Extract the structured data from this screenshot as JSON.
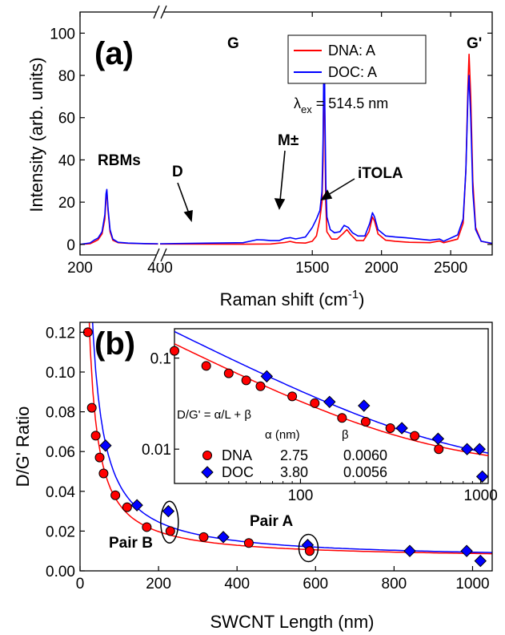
{
  "chart_data": [
    {
      "type": "line",
      "panel_label": "(a)",
      "xlabel": "Raman shift (cm",
      "xlabel_sup": "-1",
      "xlabel_close": ")",
      "ylabel": "Intensity (arb. units)",
      "xlim_low": [
        200,
        400
      ],
      "xlim_high": [
        400,
        2800
      ],
      "ylim": [
        -5,
        110
      ],
      "xticks_low": [
        200,
        400
      ],
      "xticks_high": [
        1500,
        2000,
        2500
      ],
      "yticks": [
        0,
        20,
        40,
        60,
        80,
        100
      ],
      "excitation": {
        "lambda": "λ",
        "sub": "ex",
        "value": " = 514.5 nm"
      },
      "legend": {
        "position": "top-right",
        "entries": [
          "DNA: A",
          "DOC: A"
        ]
      },
      "annotations": {
        "rbm": "RBMs",
        "d": "D",
        "g": "G",
        "m": "M±",
        "itola": "iTOLA",
        "g2": "G'"
      },
      "series": [
        {
          "name": "DNA: A",
          "color": "#ff0000",
          "low": [
            [
              200,
              0
            ],
            [
              225,
              0.3
            ],
            [
              235,
              1.2
            ],
            [
              245,
              2.2
            ],
            [
              255,
              5
            ],
            [
              262,
              12
            ],
            [
              265,
              22
            ],
            [
              267,
              25
            ],
            [
              270,
              16
            ],
            [
              275,
              6
            ],
            [
              282,
              2
            ],
            [
              295,
              0.8
            ],
            [
              320,
              0.5
            ],
            [
              360,
              0.3
            ],
            [
              395,
              0.2
            ]
          ],
          "high": [
            [
              400,
              0.2
            ],
            [
              1000,
              0.1
            ],
            [
              1200,
              0.2
            ],
            [
              1300,
              0.9
            ],
            [
              1340,
              1.4
            ],
            [
              1380,
              0.8
            ],
            [
              1450,
              0.6
            ],
            [
              1500,
              1.5
            ],
            [
              1530,
              4
            ],
            [
              1555,
              12
            ],
            [
              1570,
              20
            ],
            [
              1578,
              40
            ],
            [
              1582,
              70
            ],
            [
              1586,
              92
            ],
            [
              1590,
              60
            ],
            [
              1597,
              20
            ],
            [
              1605,
              6
            ],
            [
              1640,
              2.5
            ],
            [
              1680,
              2.5
            ],
            [
              1720,
              5
            ],
            [
              1750,
              7
            ],
            [
              1780,
              4.5
            ],
            [
              1820,
              1.8
            ],
            [
              1870,
              1.8
            ],
            [
              1910,
              6
            ],
            [
              1935,
              13
            ],
            [
              1950,
              11
            ],
            [
              1975,
              5
            ],
            [
              2030,
              2
            ],
            [
              2100,
              1.5
            ],
            [
              2200,
              1
            ],
            [
              2350,
              0.8
            ],
            [
              2420,
              1.6
            ],
            [
              2450,
              0.8
            ],
            [
              2550,
              2.5
            ],
            [
              2590,
              10
            ],
            [
              2610,
              35
            ],
            [
              2625,
              75
            ],
            [
              2633,
              90
            ],
            [
              2645,
              70
            ],
            [
              2660,
              30
            ],
            [
              2680,
              8
            ],
            [
              2720,
              1.5
            ],
            [
              2800,
              0.3
            ]
          ]
        },
        {
          "name": "DOC: A",
          "color": "#0000ff",
          "low": [
            [
              200,
              0
            ],
            [
              225,
              0.7
            ],
            [
              235,
              2
            ],
            [
              245,
              3
            ],
            [
              255,
              6
            ],
            [
              262,
              14
            ],
            [
              265,
              24
            ],
            [
              267,
              26
            ],
            [
              270,
              17
            ],
            [
              275,
              7
            ],
            [
              282,
              2.5
            ],
            [
              295,
              1
            ],
            [
              320,
              0.6
            ],
            [
              360,
              0.4
            ],
            [
              395,
              0.3
            ]
          ],
          "high": [
            [
              400,
              0.3
            ],
            [
              1000,
              0.8
            ],
            [
              1050,
              1.5
            ],
            [
              1100,
              2.2
            ],
            [
              1150,
              2.1
            ],
            [
              1200,
              1.8
            ],
            [
              1260,
              1.8
            ],
            [
              1300,
              2.8
            ],
            [
              1340,
              3.2
            ],
            [
              1380,
              2.6
            ],
            [
              1450,
              3.5
            ],
            [
              1500,
              8
            ],
            [
              1530,
              12
            ],
            [
              1555,
              16
            ],
            [
              1570,
              25
            ],
            [
              1578,
              50
            ],
            [
              1583,
              85
            ],
            [
              1587,
              98
            ],
            [
              1591,
              65
            ],
            [
              1598,
              28
            ],
            [
              1606,
              13
            ],
            [
              1630,
              7
            ],
            [
              1660,
              5.5
            ],
            [
              1700,
              6
            ],
            [
              1730,
              9
            ],
            [
              1760,
              8
            ],
            [
              1790,
              5.5
            ],
            [
              1830,
              4
            ],
            [
              1880,
              4
            ],
            [
              1915,
              10
            ],
            [
              1935,
              15
            ],
            [
              1950,
              13
            ],
            [
              1975,
              7
            ],
            [
              2030,
              4
            ],
            [
              2100,
              3.5
            ],
            [
              2200,
              3
            ],
            [
              2350,
              2
            ],
            [
              2420,
              2.5
            ],
            [
              2450,
              1.5
            ],
            [
              2550,
              4.5
            ],
            [
              2590,
              12
            ],
            [
              2610,
              35
            ],
            [
              2625,
              70
            ],
            [
              2632,
              80
            ],
            [
              2645,
              60
            ],
            [
              2660,
              25
            ],
            [
              2680,
              7
            ],
            [
              2720,
              1.5
            ],
            [
              2800,
              0.5
            ]
          ]
        }
      ]
    },
    {
      "type": "scatter",
      "panel_label": "(b)",
      "xlabel": "SWCNT Length (nm)",
      "ylabel": "D/G' Ratio",
      "xlim": [
        0,
        1050
      ],
      "ylim": [
        0,
        0.125
      ],
      "xticks": [
        0,
        200,
        400,
        600,
        800,
        1000
      ],
      "yticks": [
        0.0,
        0.02,
        0.04,
        0.06,
        0.08,
        0.1,
        0.12
      ],
      "pair_labels": {
        "a": "Pair A",
        "b": "Pair B"
      },
      "series": [
        {
          "name": "DNA",
          "color": "#ff0000",
          "marker": "circle",
          "points": [
            [
              20,
              0.12
            ],
            [
              30,
              0.082
            ],
            [
              40,
              0.068
            ],
            [
              50,
              0.057
            ],
            [
              60,
              0.049
            ],
            [
              90,
              0.038
            ],
            [
              120,
              0.032
            ],
            [
              170,
              0.022
            ],
            [
              230,
              0.02
            ],
            [
              315,
              0.017
            ],
            [
              430,
              0.014
            ],
            [
              585,
              0.01
            ]
          ],
          "fit": {
            "alpha": 2.75,
            "beta": 0.006
          }
        },
        {
          "name": "DOC",
          "color": "#0000ff",
          "marker": "diamond",
          "points": [
            [
              65,
              0.063
            ],
            [
              145,
              0.033
            ],
            [
              225,
              0.03
            ],
            [
              365,
              0.017
            ],
            [
              580,
              0.013
            ],
            [
              840,
              0.01
            ],
            [
              985,
              0.01
            ],
            [
              1020,
              0.005
            ]
          ],
          "fit": {
            "alpha": 3.8,
            "beta": 0.0056
          }
        }
      ],
      "inset": {
        "type": "scatter",
        "xscale": "log",
        "yscale": "log",
        "xlim": [
          20,
          1100
        ],
        "ylim": [
          0.0042,
          0.21
        ],
        "xticks": [
          100,
          1000
        ],
        "yticks": [
          0.01,
          0.1
        ],
        "ytick_labels": [
          "0.01",
          "0.1"
        ],
        "equation": "D/G' = α/L + β",
        "table": {
          "headers": [
            "α (nm)",
            "β"
          ],
          "rows": [
            {
              "name": "DNA",
              "alpha": "2.75",
              "beta": "0.0060"
            },
            {
              "name": "DOC",
              "alpha": "3.80",
              "beta": "0.0056"
            }
          ]
        }
      }
    }
  ]
}
